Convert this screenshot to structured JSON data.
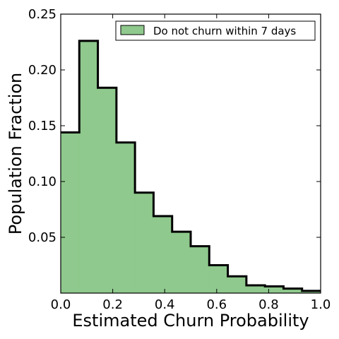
{
  "chart_data": {
    "type": "bar",
    "title": "",
    "xlabel": "Estimated Churn Probability",
    "ylabel": "Population Fraction",
    "xlim": [
      0.0,
      1.0
    ],
    "ylim": [
      0.0,
      0.25
    ],
    "x_ticks": [
      "0.0",
      "0.2",
      "0.4",
      "0.6",
      "0.8",
      "1.0"
    ],
    "x_tick_values": [
      0.0,
      0.2,
      0.4,
      0.6,
      0.8,
      1.0
    ],
    "y_ticks": [
      "0.05",
      "0.10",
      "0.15",
      "0.20",
      "0.25"
    ],
    "y_tick_values": [
      0.05,
      0.1,
      0.15,
      0.2,
      0.25
    ],
    "grid": false,
    "legend_position": "top-right",
    "fill_color": "#8fc98d",
    "edge_color": "#000000",
    "series": [
      {
        "name": "Do not churn within 7 days",
        "bin_edges": [
          0.0,
          0.0714,
          0.1429,
          0.2143,
          0.2857,
          0.3571,
          0.4286,
          0.5,
          0.5714,
          0.6429,
          0.7143,
          0.7857,
          0.8571,
          0.9286,
          1.0
        ],
        "values": [
          0.144,
          0.226,
          0.184,
          0.135,
          0.09,
          0.069,
          0.055,
          0.042,
          0.025,
          0.015,
          0.007,
          0.006,
          0.004,
          0.002
        ]
      }
    ]
  }
}
